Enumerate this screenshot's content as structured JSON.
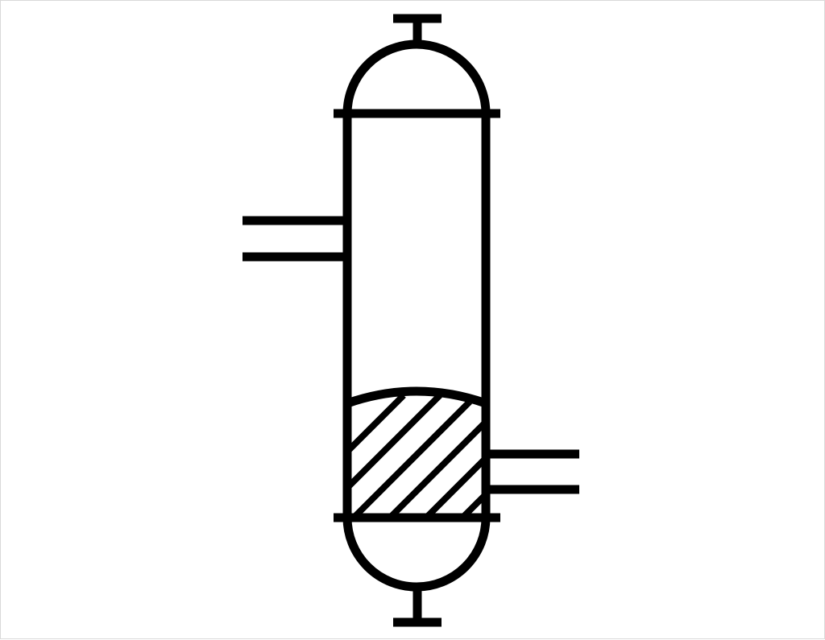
{
  "diagram": {
    "symbol": "packed-column-vessel",
    "stroke_color": "#000000",
    "background_color": "#ffffff",
    "components": [
      "top-nozzle",
      "top-head",
      "vessel-shell",
      "side-inlet-nozzle",
      "packed-bed",
      "side-outlet-nozzle",
      "bottom-head",
      "bottom-nozzle"
    ]
  }
}
